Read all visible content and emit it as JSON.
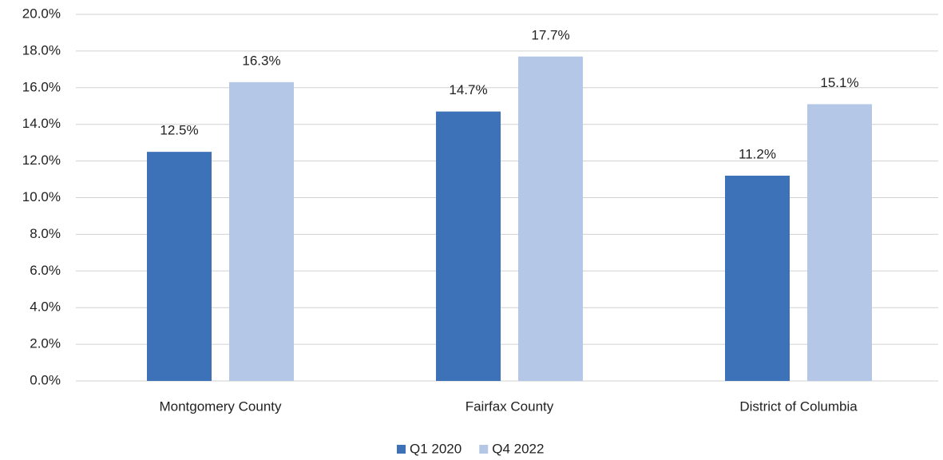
{
  "chart_data": {
    "type": "bar",
    "categories": [
      "Montgomery County",
      "Fairfax County",
      "District of Columbia"
    ],
    "series": [
      {
        "name": "Q1 2020",
        "color": "#3d72b8",
        "values": [
          12.5,
          14.7,
          11.2
        ],
        "value_labels": [
          "12.5%",
          "14.7%",
          "11.2%"
        ]
      },
      {
        "name": "Q4 2022",
        "color": "#b4c7e7",
        "values": [
          16.3,
          17.7,
          15.1
        ],
        "value_labels": [
          "16.3%",
          "17.7%",
          "15.1%"
        ]
      }
    ],
    "ylim": [
      0,
      20
    ],
    "yticks": [
      {
        "value": 0,
        "label": "0.0%"
      },
      {
        "value": 2,
        "label": "2.0%"
      },
      {
        "value": 4,
        "label": "4.0%"
      },
      {
        "value": 6,
        "label": "6.0%"
      },
      {
        "value": 8,
        "label": "8.0%"
      },
      {
        "value": 10,
        "label": "10.0%"
      },
      {
        "value": 12,
        "label": "12.0%"
      },
      {
        "value": 14,
        "label": "14.0%"
      },
      {
        "value": 16,
        "label": "16.0%"
      },
      {
        "value": 18,
        "label": "18.0%"
      },
      {
        "value": 20,
        "label": "20.0%"
      }
    ],
    "grid": true,
    "legend": "bottom"
  }
}
